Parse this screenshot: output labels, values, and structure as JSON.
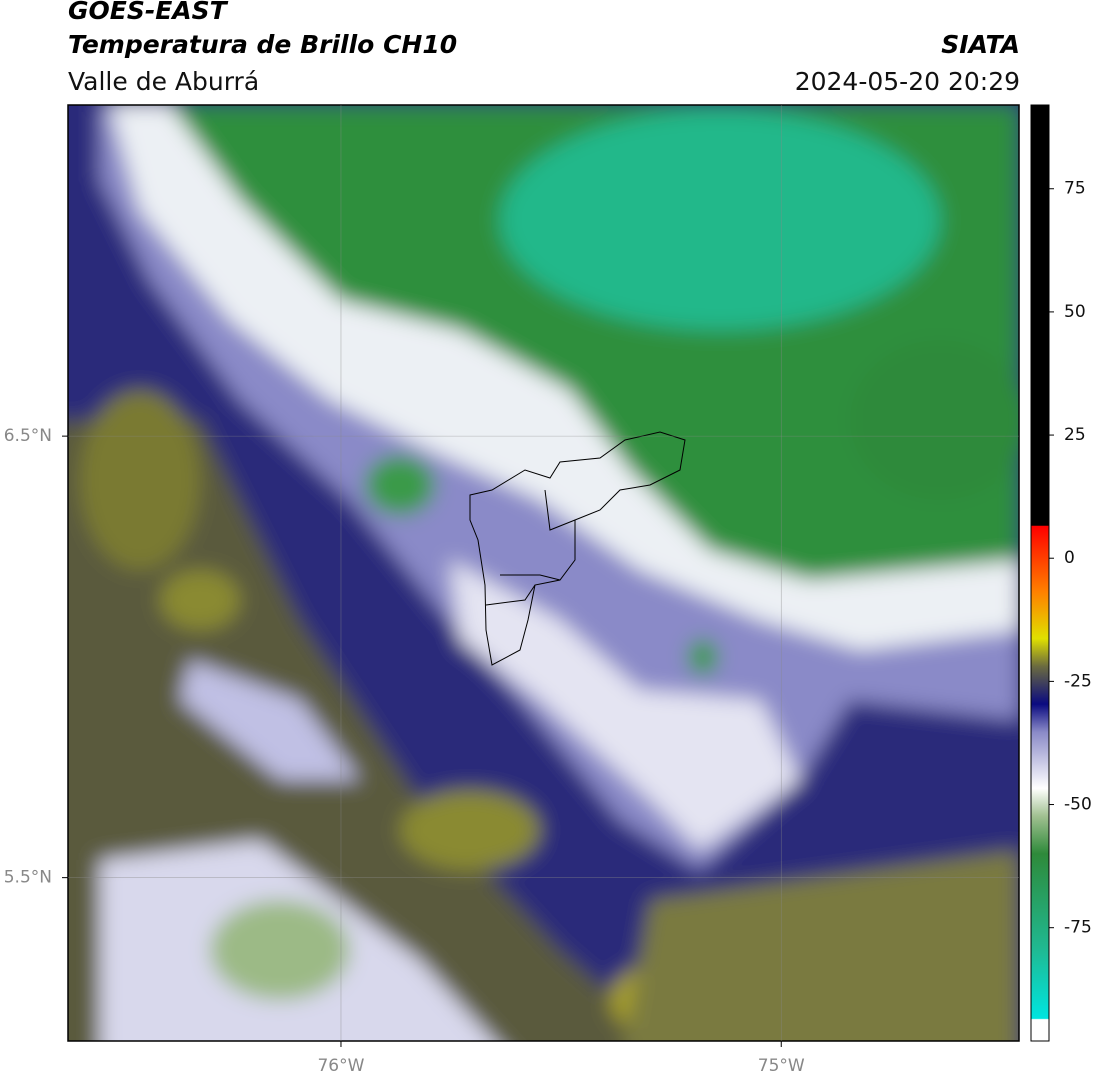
{
  "header": {
    "satellite": "GOES-EAST",
    "product": "Temperatura de Brillo CH10",
    "region": "Valle de Aburrá",
    "agency": "SIATA",
    "datetime": "2024-05-20 20:29"
  },
  "map": {
    "xlim": [
      -76.62,
      -74.46
    ],
    "ylim": [
      5.13,
      7.25
    ],
    "xticks": [
      {
        "value": -76,
        "label": "76°W"
      },
      {
        "value": -75,
        "label": "75°W"
      }
    ],
    "yticks": [
      {
        "value": 6.5,
        "label": "6.5°N"
      },
      {
        "value": 5.5,
        "label": "5.5°N"
      }
    ],
    "grid": true
  },
  "colorbar": {
    "lim": [
      -98,
      92
    ],
    "ticks": [
      75,
      50,
      25,
      0,
      -25,
      -50,
      -75
    ]
  }
}
